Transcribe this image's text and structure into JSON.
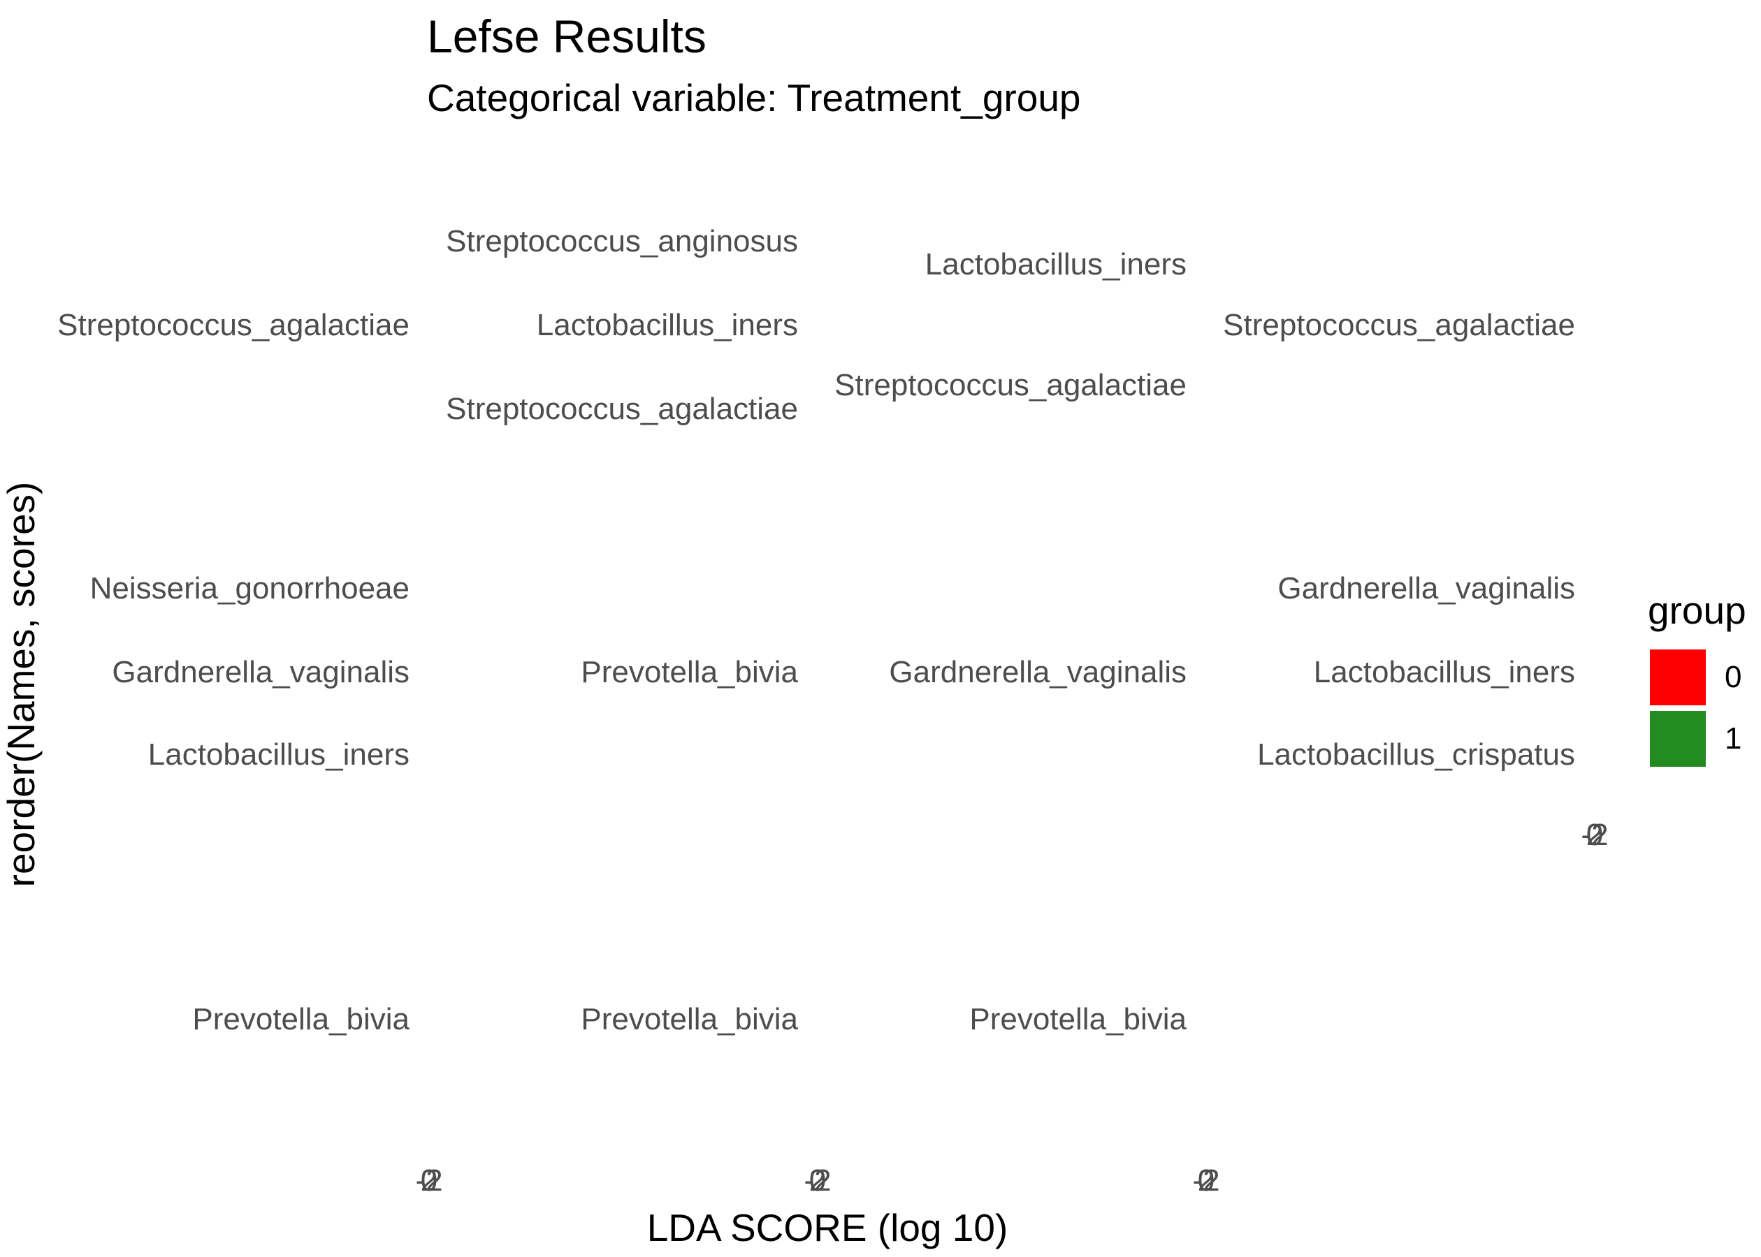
{
  "chart_data": {
    "type": "bar",
    "title": "Lefse Results",
    "subtitle": "Categorical variable: Treatment_group",
    "xlabel": "LDA SCORE (log 10)",
    "ylabel": "reorder(Names, scores)",
    "legend": {
      "title": "group",
      "position": "right",
      "items": [
        {
          "label": "0",
          "color": "#FF0000"
        },
        {
          "label": "1",
          "color": "#228B22"
        }
      ]
    },
    "grid": false,
    "x_tick_labels": [
      "-2",
      "0",
      "2"
    ],
    "panels": [
      {
        "labels": [
          "Streptococcus_agalactiae",
          "Neisseria_gonorrhoeae",
          "Gardnerella_vaginalis",
          "Lactobacillus_iners",
          "Prevotella_bivia"
        ]
      },
      {
        "labels": [
          "Streptococcus_anginosus",
          "Lactobacillus_iners",
          "Streptococcus_agalactiae",
          "Prevotella_bivia",
          "Prevotella_bivia"
        ]
      },
      {
        "labels": [
          "Lactobacillus_iners",
          "Streptococcus_agalactiae",
          "Gardnerella_vaginalis",
          "Prevotella_bivia"
        ]
      },
      {
        "labels": [
          "Streptococcus_agalactiae",
          "Gardnerella_vaginalis",
          "Lactobacillus_iners",
          "Lactobacillus_crispatus"
        ]
      }
    ]
  }
}
